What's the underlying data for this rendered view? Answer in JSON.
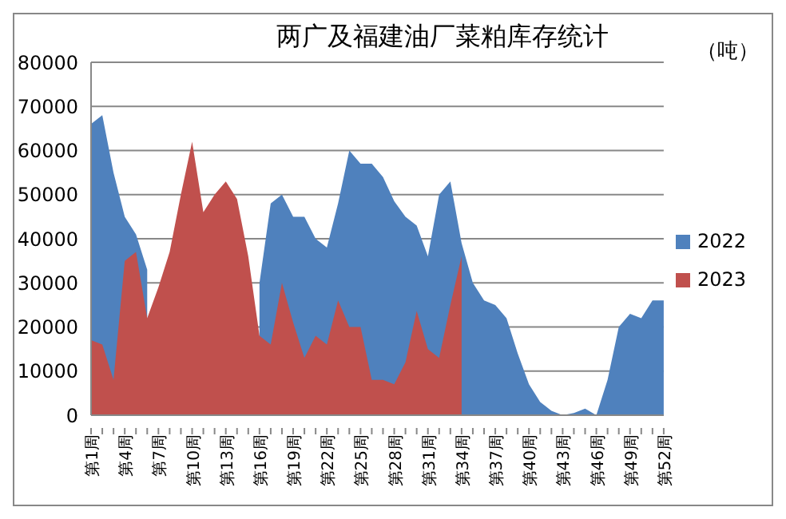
{
  "chart_data": {
    "type": "area",
    "title": "两广及福建油厂菜粕库存统计",
    "annotations": [
      "（吨）"
    ],
    "categories": [
      "第1周",
      null,
      null,
      "第4周",
      null,
      null,
      "第7周",
      null,
      null,
      "第10周",
      null,
      null,
      "第13周",
      null,
      null,
      "第16周",
      null,
      null,
      "第19周",
      null,
      null,
      "第22周",
      null,
      null,
      "第25周",
      null,
      null,
      "第28周",
      null,
      null,
      "第31周",
      null,
      null,
      "第34周",
      null,
      null,
      "第37周",
      null,
      null,
      "第40周",
      null,
      null,
      "第43周",
      null,
      null,
      "第46周",
      null,
      null,
      "第49周",
      null,
      null,
      "第52周"
    ],
    "series": [
      {
        "name": "2022",
        "color": "#4f81bd",
        "values": [
          66000,
          68000,
          55000,
          45000,
          41000,
          33000,
          null,
          null,
          null,
          null,
          null,
          null,
          null,
          null,
          null,
          30000,
          48000,
          50000,
          45000,
          45000,
          40000,
          38000,
          48000,
          60000,
          57000,
          57000,
          54000,
          48500,
          45000,
          43000,
          36000,
          50000,
          53000,
          39000,
          30000,
          26000,
          25000,
          22000,
          14000,
          7000,
          3000,
          1000,
          0,
          500,
          1500,
          0,
          8000,
          20000,
          23000,
          22000,
          26000,
          26000
        ]
      },
      {
        "name": "2023",
        "color": "#c0504d",
        "values": [
          17000,
          16000,
          8000,
          35000,
          37000,
          22000,
          29000,
          37000,
          50000,
          62000,
          46000,
          50000,
          53000,
          49000,
          36000,
          18000,
          16000,
          30000,
          21000,
          13000,
          18000,
          16000,
          26000,
          20000,
          20000,
          8000,
          8000,
          7000,
          12000,
          23600,
          15000,
          13000,
          25000,
          36000,
          null,
          null,
          null,
          null,
          null,
          null,
          null,
          null,
          null,
          null,
          null,
          null,
          null,
          null,
          null,
          null,
          null,
          null
        ]
      }
    ],
    "ylim": [
      0,
      80000
    ],
    "yticks": [
      0,
      10000,
      20000,
      30000,
      40000,
      50000,
      60000,
      70000,
      80000
    ],
    "grid": "y",
    "legend": "right"
  }
}
